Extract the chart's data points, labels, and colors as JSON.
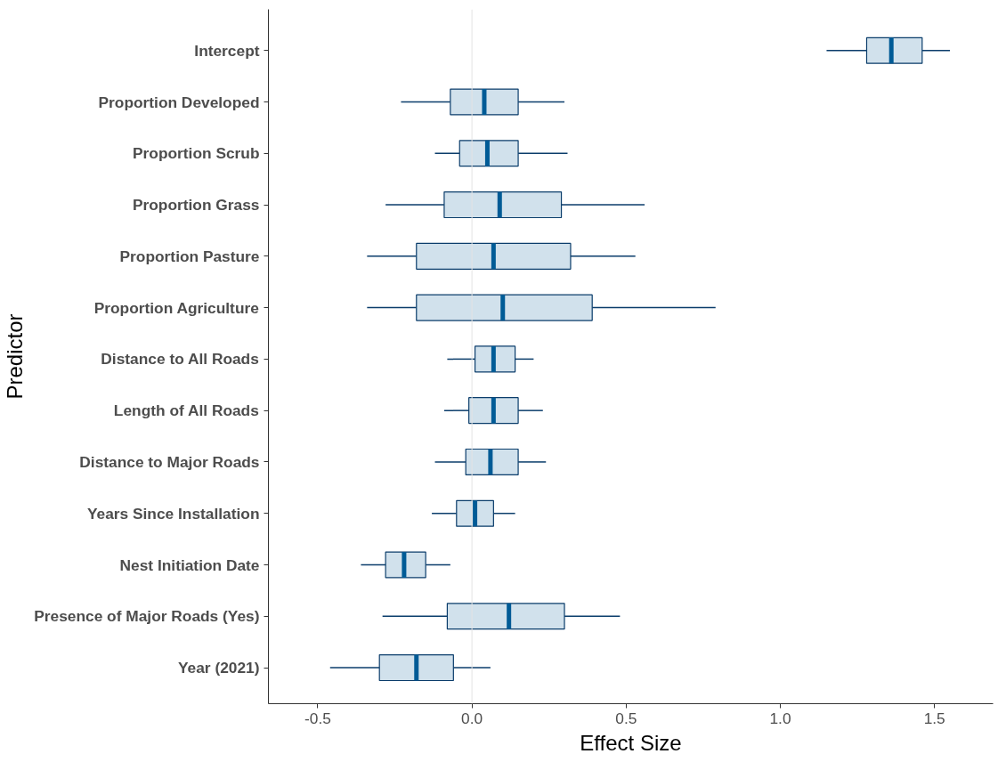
{
  "chart_data": {
    "type": "box",
    "orientation": "horizontal",
    "xlabel": "Effect Size",
    "ylabel": "Predictor",
    "categories": [
      "Intercept",
      "Proportion Developed",
      "Proportion Scrub",
      "Proportion Grass",
      "Proportion Pasture",
      "Proportion Agriculture",
      "Distance to All Roads",
      "Length of All Roads",
      "Distance to Major Roads",
      "Years Since Installation",
      "Nest Initiation Date",
      "Presence of Major Roads (Yes)",
      "Year (2021)"
    ],
    "boxes": [
      {
        "low": 1.15,
        "q1": 1.28,
        "median": 1.36,
        "q3": 1.46,
        "high": 1.55
      },
      {
        "low": -0.23,
        "q1": -0.07,
        "median": 0.04,
        "q3": 0.15,
        "high": 0.3
      },
      {
        "low": -0.12,
        "q1": -0.04,
        "median": 0.05,
        "q3": 0.15,
        "high": 0.31
      },
      {
        "low": -0.28,
        "q1": -0.09,
        "median": 0.09,
        "q3": 0.29,
        "high": 0.56
      },
      {
        "low": -0.34,
        "q1": -0.18,
        "median": 0.07,
        "q3": 0.32,
        "high": 0.53
      },
      {
        "low": -0.34,
        "q1": -0.18,
        "median": 0.1,
        "q3": 0.39,
        "high": 0.79
      },
      {
        "low": -0.08,
        "q1": 0.01,
        "median": 0.07,
        "q3": 0.14,
        "high": 0.2
      },
      {
        "low": -0.09,
        "q1": -0.01,
        "median": 0.07,
        "q3": 0.15,
        "high": 0.23
      },
      {
        "low": -0.12,
        "q1": -0.02,
        "median": 0.06,
        "q3": 0.15,
        "high": 0.24
      },
      {
        "low": -0.13,
        "q1": -0.05,
        "median": 0.01,
        "q3": 0.07,
        "high": 0.14
      },
      {
        "low": -0.36,
        "q1": -0.28,
        "median": -0.22,
        "q3": -0.15,
        "high": -0.07
      },
      {
        "low": -0.29,
        "q1": -0.08,
        "median": 0.12,
        "q3": 0.3,
        "high": 0.48
      },
      {
        "low": -0.46,
        "q1": -0.3,
        "median": -0.18,
        "q3": -0.06,
        "high": 0.06
      }
    ],
    "color": "#d1e1ec",
    "xlim": [
      -0.66,
      1.69
    ],
    "xticks": [
      -0.5,
      {
        "value": 0,
        "label": "0.0"
      },
      0.5,
      {
        "value": 1,
        "label": "1.0"
      },
      1.5
    ],
    "ref_lines": [
      {
        "axis": "x",
        "value": 0,
        "label": null,
        "color": "#e3e3e3"
      }
    ],
    "grid": false
  }
}
